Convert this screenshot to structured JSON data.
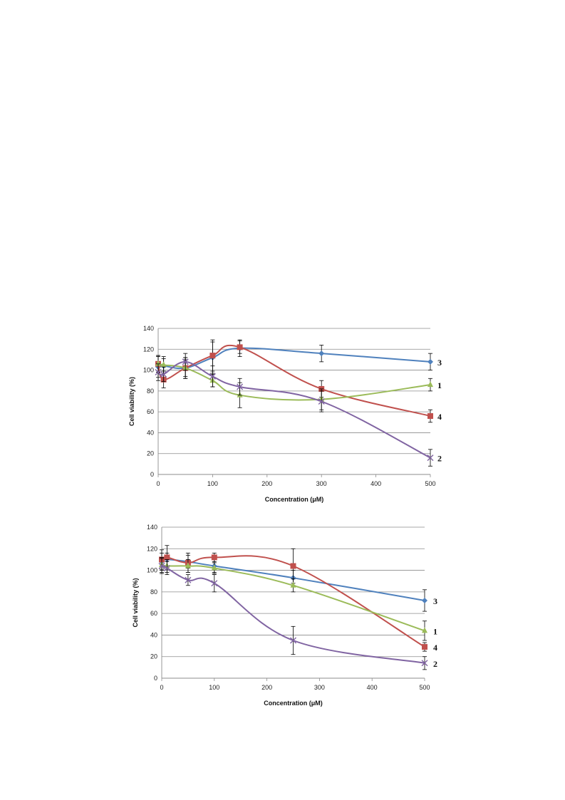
{
  "colors": {
    "series_1": "#9bbb59",
    "series_2": "#8064a2",
    "series_3": "#4f81bd",
    "series_4": "#c0504d",
    "grid": "#8c8c8c",
    "error_bar": "#000000"
  },
  "chart_data": [
    {
      "type": "line",
      "title": "",
      "xlabel": "Concentration (μM)",
      "ylabel": "Cell viability (%)",
      "xlim": [
        0,
        500
      ],
      "ylim": [
        0,
        140
      ],
      "xticks": [
        0,
        100,
        200,
        300,
        400,
        500
      ],
      "yticks": [
        0,
        20,
        40,
        60,
        80,
        100,
        120,
        140
      ],
      "grid": true,
      "legend": "end-of-line labels",
      "series": [
        {
          "name": "3",
          "color": "#4f81bd",
          "marker": "diamond",
          "x": [
            0,
            10,
            50,
            100,
            150,
            300,
            500
          ],
          "y": [
            103,
            104,
            102,
            112,
            121,
            116,
            108
          ],
          "err": [
            10,
            7,
            10,
            15,
            8,
            8,
            8
          ]
        },
        {
          "name": "4",
          "color": "#c0504d",
          "marker": "square",
          "x": [
            0,
            10,
            50,
            100,
            150,
            300,
            500
          ],
          "y": [
            106,
            91,
            102,
            114,
            122,
            82,
            56
          ],
          "err": [
            8,
            8,
            8,
            15,
            6,
            8,
            6
          ]
        },
        {
          "name": "1",
          "color": "#9bbb59",
          "marker": "triangle",
          "x": [
            0,
            10,
            50,
            100,
            150,
            300,
            500
          ],
          "y": [
            106,
            105,
            102,
            90,
            76,
            72,
            86
          ],
          "err": [
            8,
            8,
            10,
            6,
            12,
            10,
            6
          ]
        },
        {
          "name": "2",
          "color": "#8064a2",
          "marker": "x",
          "x": [
            0,
            10,
            50,
            100,
            150,
            300,
            500
          ],
          "y": [
            98,
            96,
            108,
            94,
            84,
            70,
            16
          ],
          "err": [
            8,
            7,
            8,
            10,
            8,
            10,
            8
          ]
        }
      ]
    },
    {
      "type": "line",
      "title": "",
      "xlabel": "Concentration (μM)",
      "ylabel": "Cell viability (%)",
      "xlim": [
        0,
        500
      ],
      "ylim": [
        0,
        140
      ],
      "xticks": [
        0,
        100,
        200,
        300,
        400,
        500
      ],
      "yticks": [
        0,
        20,
        40,
        60,
        80,
        100,
        120,
        140
      ],
      "grid": true,
      "legend": "end-of-line labels",
      "series": [
        {
          "name": "3",
          "color": "#4f81bd",
          "marker": "diamond",
          "x": [
            0,
            10,
            50,
            100,
            250,
            500
          ],
          "y": [
            108,
            110,
            108,
            104,
            93,
            72
          ],
          "err": [
            8,
            6,
            6,
            6,
            7,
            10
          ]
        },
        {
          "name": "4",
          "color": "#c0504d",
          "marker": "square",
          "x": [
            0,
            10,
            50,
            100,
            250,
            500
          ],
          "y": [
            110,
            112,
            107,
            112,
            104,
            29
          ],
          "err": [
            9,
            11,
            9,
            4,
            16,
            4
          ]
        },
        {
          "name": "1",
          "color": "#9bbb59",
          "marker": "triangle",
          "x": [
            0,
            10,
            50,
            100,
            250,
            500
          ],
          "y": [
            105,
            104,
            104,
            102,
            86,
            44
          ],
          "err": [
            7,
            6,
            6,
            5,
            6,
            9
          ]
        },
        {
          "name": "2",
          "color": "#8064a2",
          "marker": "x",
          "x": [
            0,
            10,
            50,
            100,
            250,
            500
          ],
          "y": [
            104,
            102,
            91,
            88,
            35,
            14
          ],
          "err": [
            7,
            6,
            5,
            8,
            13,
            6
          ]
        }
      ]
    }
  ]
}
